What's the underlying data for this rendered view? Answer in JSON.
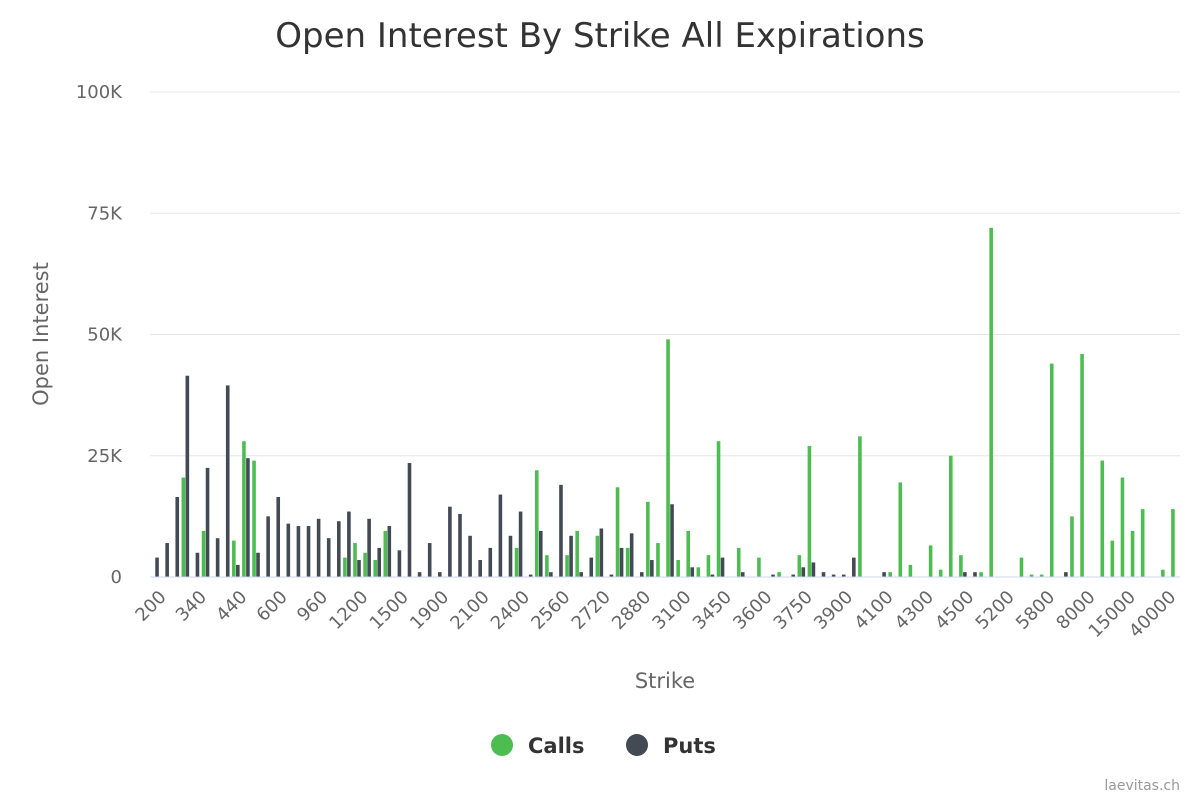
{
  "chart_data": {
    "type": "bar",
    "title": "Open Interest By Strike All Expirations",
    "xlabel": "Strike",
    "ylabel": "Open Interest",
    "ylim": [
      0,
      100000
    ],
    "yticks": [
      0,
      25000,
      50000,
      75000,
      100000
    ],
    "ytick_labels": [
      "0",
      "25K",
      "50K",
      "75K",
      "100K"
    ],
    "x_tick_labels": [
      "200",
      "340",
      "440",
      "600",
      "960",
      "1200",
      "1500",
      "1900",
      "2100",
      "2400",
      "2560",
      "2720",
      "2880",
      "3100",
      "3450",
      "3600",
      "3750",
      "3900",
      "4100",
      "4300",
      "4500",
      "5200",
      "5800",
      "8000",
      "15000",
      "40000"
    ],
    "label_every": 4,
    "grid": true,
    "legend_position": "bottom",
    "credit": "laevitas.ch",
    "colors": {
      "calls": "#4dbd52",
      "puts": "#434a54"
    },
    "series": [
      {
        "name": "Calls",
        "values": [
          0,
          0,
          0,
          20500,
          0,
          9500,
          0,
          0,
          7500,
          28000,
          24000,
          0,
          0,
          0,
          0,
          0,
          0,
          0,
          0,
          4000,
          7000,
          5000,
          3500,
          9500,
          0,
          0,
          0,
          0,
          0,
          0,
          0,
          0,
          0,
          0,
          0,
          0,
          6000,
          0,
          22000,
          4500,
          0,
          4500,
          9500,
          0,
          8500,
          0,
          18500,
          6000,
          0,
          15500,
          7000,
          49000,
          3500,
          9500,
          2000,
          4500,
          28000,
          0,
          6000,
          0,
          4000,
          0,
          1000,
          0,
          4500,
          27000,
          0,
          0,
          0,
          0,
          29000,
          0,
          0,
          1000,
          19500,
          2500,
          0,
          6500,
          1500,
          25000,
          4500,
          0,
          1000,
          72000,
          0,
          0,
          4000,
          500,
          500,
          44000,
          0,
          12500,
          46000,
          0,
          24000,
          7500,
          20500,
          9500,
          14000,
          0,
          1500,
          14000
        ]
      },
      {
        "name": "Puts",
        "values": [
          4000,
          7000,
          16500,
          41500,
          5000,
          22500,
          8000,
          39500,
          2500,
          24500,
          5000,
          12500,
          16500,
          11000,
          10500,
          10500,
          12000,
          8000,
          11500,
          13500,
          3500,
          12000,
          6000,
          10500,
          5500,
          23500,
          1000,
          7000,
          1000,
          14500,
          13000,
          8500,
          3500,
          6000,
          17000,
          8500,
          13500,
          500,
          9500,
          1000,
          19000,
          8500,
          1000,
          4000,
          10000,
          500,
          6000,
          9000,
          1000,
          3500,
          0,
          15000,
          0,
          2000,
          0,
          500,
          4000,
          0,
          1000,
          0,
          0,
          500,
          0,
          500,
          2000,
          3000,
          1000,
          500,
          500,
          4000,
          0,
          0,
          1000,
          0,
          0,
          0,
          0,
          0,
          0,
          0,
          1000,
          1000,
          0,
          0,
          0,
          0,
          0,
          0,
          0,
          0,
          1000,
          0,
          0,
          0,
          0,
          0,
          0,
          0,
          0,
          0
        ]
      }
    ]
  }
}
